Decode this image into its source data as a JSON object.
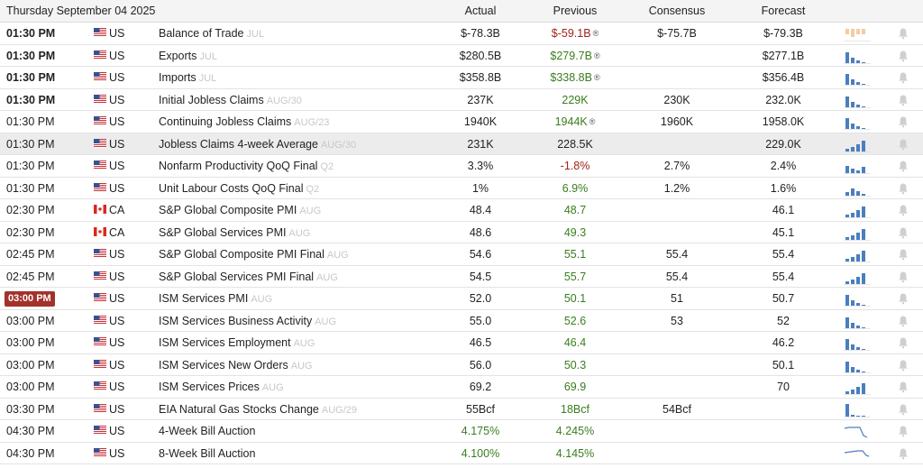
{
  "header": {
    "date": "Thursday September 04 2025",
    "actual": "Actual",
    "previous": "Previous",
    "consensus": "Consensus",
    "forecast": "Forecast"
  },
  "colors": {
    "positive": "#3a7d1f",
    "negative": "#a3211a",
    "spark_bar": "#4a7fbf",
    "spark_light": "#f5cba0",
    "badge": "#a3322a"
  },
  "rows": [
    {
      "time": "01:30 PM",
      "time_style": "bold",
      "country": "US",
      "event": "Balance of Trade",
      "ref": "JUL",
      "actual": "$-78.3B",
      "actual_color": "",
      "previous": "$-59.1B",
      "previous_color": "red",
      "previous_revised": true,
      "consensus": "$-75.7B",
      "forecast": "$-79.3B",
      "spark": "balance",
      "highlight": false
    },
    {
      "time": "01:30 PM",
      "time_style": "bold",
      "country": "US",
      "event": "Exports",
      "ref": "JUL",
      "actual": "$280.5B",
      "actual_color": "",
      "previous": "$279.7B",
      "previous_color": "green",
      "previous_revised": true,
      "consensus": "",
      "forecast": "$277.1B",
      "spark": "bars",
      "highlight": false
    },
    {
      "time": "01:30 PM",
      "time_style": "bold",
      "country": "US",
      "event": "Imports",
      "ref": "JUL",
      "actual": "$358.8B",
      "actual_color": "",
      "previous": "$338.8B",
      "previous_color": "green",
      "previous_revised": true,
      "consensus": "",
      "forecast": "$356.4B",
      "spark": "bars",
      "highlight": false
    },
    {
      "time": "01:30 PM",
      "time_style": "bold",
      "country": "US",
      "event": "Initial Jobless Claims",
      "ref": "AUG/30",
      "actual": "237K",
      "actual_color": "",
      "previous": "229K",
      "previous_color": "green",
      "previous_revised": false,
      "consensus": "230K",
      "forecast": "232.0K",
      "spark": "bars",
      "highlight": false
    },
    {
      "time": "01:30 PM",
      "time_style": "normal",
      "country": "US",
      "event": "Continuing Jobless Claims",
      "ref": "AUG/23",
      "actual": "1940K",
      "actual_color": "",
      "previous": "1944K",
      "previous_color": "green",
      "previous_revised": true,
      "consensus": "1960K",
      "forecast": "1958.0K",
      "spark": "bars",
      "highlight": false
    },
    {
      "time": "01:30 PM",
      "time_style": "normal",
      "country": "US",
      "event": "Jobless Claims 4-week Average",
      "ref": "AUG/30",
      "actual": "231K",
      "actual_color": "",
      "previous": "228.5K",
      "previous_color": "",
      "previous_revised": false,
      "consensus": "",
      "forecast": "229.0K",
      "spark": "rising",
      "highlight": true
    },
    {
      "time": "01:30 PM",
      "time_style": "normal",
      "country": "US",
      "event": "Nonfarm Productivity QoQ Final",
      "ref": "Q2",
      "actual": "3.3%",
      "actual_color": "",
      "previous": "-1.8%",
      "previous_color": "red",
      "previous_revised": false,
      "consensus": "2.7%",
      "forecast": "2.4%",
      "spark": "mixed",
      "highlight": false
    },
    {
      "time": "01:30 PM",
      "time_style": "normal",
      "country": "US",
      "event": "Unit Labour Costs QoQ Final",
      "ref": "Q2",
      "actual": "1%",
      "actual_color": "",
      "previous": "6.9%",
      "previous_color": "green",
      "previous_revised": false,
      "consensus": "1.2%",
      "forecast": "1.6%",
      "spark": "small",
      "highlight": false
    },
    {
      "time": "02:30 PM",
      "time_style": "normal",
      "country": "CA",
      "event": "S&P Global Composite PMI",
      "ref": "AUG",
      "actual": "48.4",
      "actual_color": "",
      "previous": "48.7",
      "previous_color": "green",
      "previous_revised": false,
      "consensus": "",
      "forecast": "46.1",
      "spark": "rising",
      "highlight": false
    },
    {
      "time": "02:30 PM",
      "time_style": "normal",
      "country": "CA",
      "event": "S&P Global Services PMI",
      "ref": "AUG",
      "actual": "48.6",
      "actual_color": "",
      "previous": "49.3",
      "previous_color": "green",
      "previous_revised": false,
      "consensus": "",
      "forecast": "45.1",
      "spark": "rising",
      "highlight": false
    },
    {
      "time": "02:45 PM",
      "time_style": "normal",
      "country": "US",
      "event": "S&P Global Composite PMI Final",
      "ref": "AUG",
      "actual": "54.6",
      "actual_color": "",
      "previous": "55.1",
      "previous_color": "green",
      "previous_revised": false,
      "consensus": "55.4",
      "forecast": "55.4",
      "spark": "rising",
      "highlight": false
    },
    {
      "time": "02:45 PM",
      "time_style": "normal",
      "country": "US",
      "event": "S&P Global Services PMI Final",
      "ref": "AUG",
      "actual": "54.5",
      "actual_color": "",
      "previous": "55.7",
      "previous_color": "green",
      "previous_revised": false,
      "consensus": "55.4",
      "forecast": "55.4",
      "spark": "rising",
      "highlight": false
    },
    {
      "time": "03:00 PM",
      "time_style": "badge",
      "country": "US",
      "event": "ISM Services PMI",
      "ref": "AUG",
      "actual": "52.0",
      "actual_color": "",
      "previous": "50.1",
      "previous_color": "green",
      "previous_revised": false,
      "consensus": "51",
      "forecast": "50.7",
      "spark": "bars",
      "highlight": false
    },
    {
      "time": "03:00 PM",
      "time_style": "normal",
      "country": "US",
      "event": "ISM Services Business Activity",
      "ref": "AUG",
      "actual": "55.0",
      "actual_color": "",
      "previous": "52.6",
      "previous_color": "green",
      "previous_revised": false,
      "consensus": "53",
      "forecast": "52",
      "spark": "bars",
      "highlight": false
    },
    {
      "time": "03:00 PM",
      "time_style": "normal",
      "country": "US",
      "event": "ISM Services Employment",
      "ref": "AUG",
      "actual": "46.5",
      "actual_color": "",
      "previous": "46.4",
      "previous_color": "green",
      "previous_revised": false,
      "consensus": "",
      "forecast": "46.2",
      "spark": "bars",
      "highlight": false
    },
    {
      "time": "03:00 PM",
      "time_style": "normal",
      "country": "US",
      "event": "ISM Services New Orders",
      "ref": "AUG",
      "actual": "56.0",
      "actual_color": "",
      "previous": "50.3",
      "previous_color": "green",
      "previous_revised": false,
      "consensus": "",
      "forecast": "50.1",
      "spark": "bars",
      "highlight": false
    },
    {
      "time": "03:00 PM",
      "time_style": "normal",
      "country": "US",
      "event": "ISM Services Prices",
      "ref": "AUG",
      "actual": "69.2",
      "actual_color": "",
      "previous": "69.9",
      "previous_color": "green",
      "previous_revised": false,
      "consensus": "",
      "forecast": "70",
      "spark": "rising",
      "highlight": false
    },
    {
      "time": "03:30 PM",
      "time_style": "normal",
      "country": "US",
      "event": "EIA Natural Gas Stocks Change",
      "ref": "AUG/29",
      "actual": "55Bcf",
      "actual_color": "",
      "previous": "18Bcf",
      "previous_color": "green",
      "previous_revised": false,
      "consensus": "54Bcf",
      "forecast": "",
      "spark": "gas",
      "highlight": false
    },
    {
      "time": "04:30 PM",
      "time_style": "normal",
      "country": "US",
      "event": "4-Week Bill Auction",
      "ref": "",
      "actual": "4.175%",
      "actual_color": "green",
      "previous": "4.245%",
      "previous_color": "green",
      "previous_revised": false,
      "consensus": "",
      "forecast": "",
      "spark": "line",
      "highlight": false
    },
    {
      "time": "04:30 PM",
      "time_style": "normal",
      "country": "US",
      "event": "8-Week Bill Auction",
      "ref": "",
      "actual": "4.100%",
      "actual_color": "green",
      "previous": "4.145%",
      "previous_color": "green",
      "previous_revised": false,
      "consensus": "",
      "forecast": "",
      "spark": "line2",
      "highlight": false
    }
  ]
}
